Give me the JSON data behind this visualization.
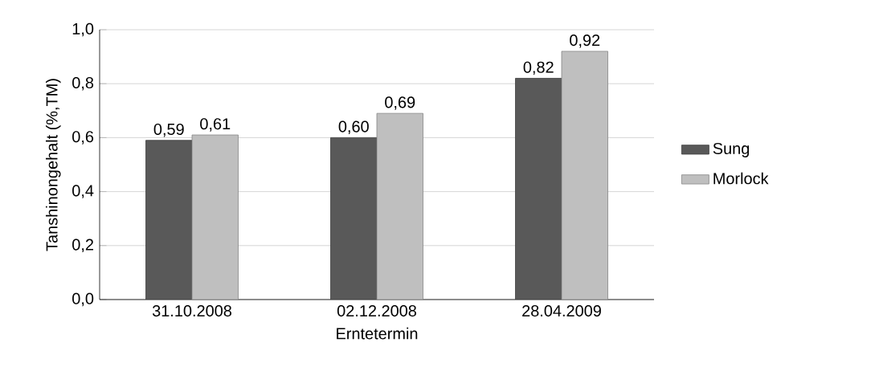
{
  "chart_data": {
    "type": "bar",
    "xlabel": "Erntetermin",
    "ylabel": "Tanshinongehalt (%,TM)",
    "categories": [
      "31.10.2008",
      "02.12.2008",
      "28.04.2009"
    ],
    "series": [
      {
        "name": "Sung",
        "color": "#595959",
        "values": [
          0.59,
          0.6,
          0.82
        ],
        "value_labels": [
          "0,59",
          "0,60",
          "0,82"
        ]
      },
      {
        "name": "Morlock",
        "color": "#bfbfbf",
        "values": [
          0.61,
          0.69,
          0.92
        ],
        "value_labels": [
          "0,61",
          "0,69",
          "0,92"
        ]
      }
    ],
    "ylim": [
      0,
      1.0
    ],
    "yticks": [
      {
        "value": 0,
        "label": "0,0"
      },
      {
        "value": 0.2,
        "label": "0,2"
      },
      {
        "value": 0.4,
        "label": "0,4"
      },
      {
        "value": 0.6,
        "label": "0,6"
      },
      {
        "value": 0.8,
        "label": "0,8"
      },
      {
        "value": 1.0,
        "label": "1,0"
      }
    ],
    "grid": "y",
    "legend": "right"
  }
}
